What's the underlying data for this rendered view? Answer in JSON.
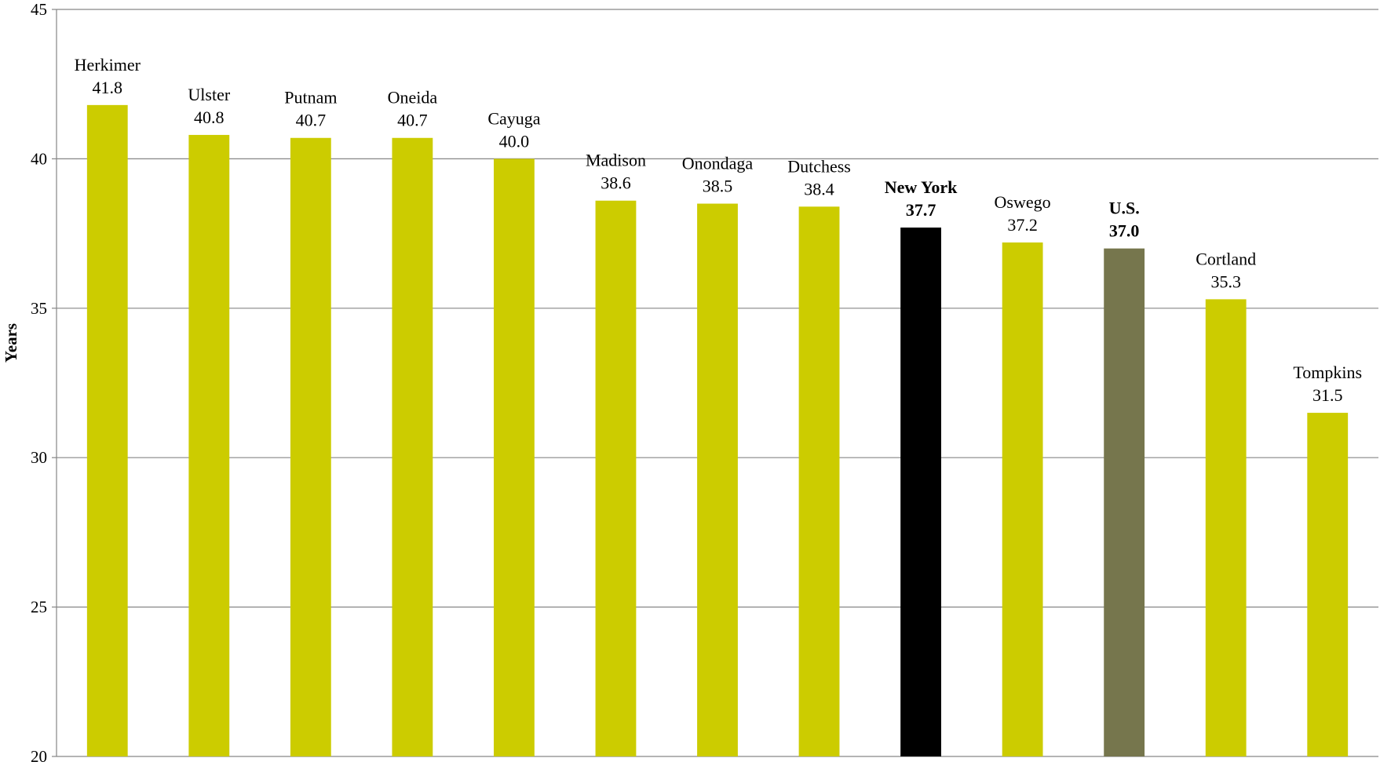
{
  "chart_data": {
    "type": "bar",
    "title": "",
    "xlabel": "",
    "ylabel": "Years",
    "ylim": [
      20,
      45
    ],
    "yticks": [
      20,
      25,
      30,
      35,
      40,
      45
    ],
    "grid": true,
    "categories": [
      "Herkimer",
      "Ulster",
      "Putnam",
      "Oneida",
      "Cayuga",
      "Madison",
      "Onondaga",
      "Dutchess",
      "New York",
      "Oswego",
      "U.S.",
      "Cortland",
      "Tompkins"
    ],
    "values": [
      41.8,
      40.8,
      40.7,
      40.7,
      40.0,
      38.6,
      38.5,
      38.4,
      37.7,
      37.2,
      37.0,
      35.3,
      31.5
    ],
    "value_labels": [
      "41.8",
      "40.8",
      "40.7",
      "40.7",
      "40.0",
      "38.6",
      "38.5",
      "38.4",
      "37.7",
      "37.2",
      "37.0",
      "35.3",
      "31.5"
    ],
    "bar_colors": [
      "#cccc00",
      "#cccc00",
      "#cccc00",
      "#cccc00",
      "#cccc00",
      "#cccc00",
      "#cccc00",
      "#cccc00",
      "#000000",
      "#cccc00",
      "#76764d",
      "#cccc00",
      "#cccc00"
    ],
    "bold_labels": [
      false,
      false,
      false,
      false,
      false,
      false,
      false,
      false,
      true,
      false,
      true,
      false,
      false
    ],
    "gridline_color": "#868686"
  }
}
